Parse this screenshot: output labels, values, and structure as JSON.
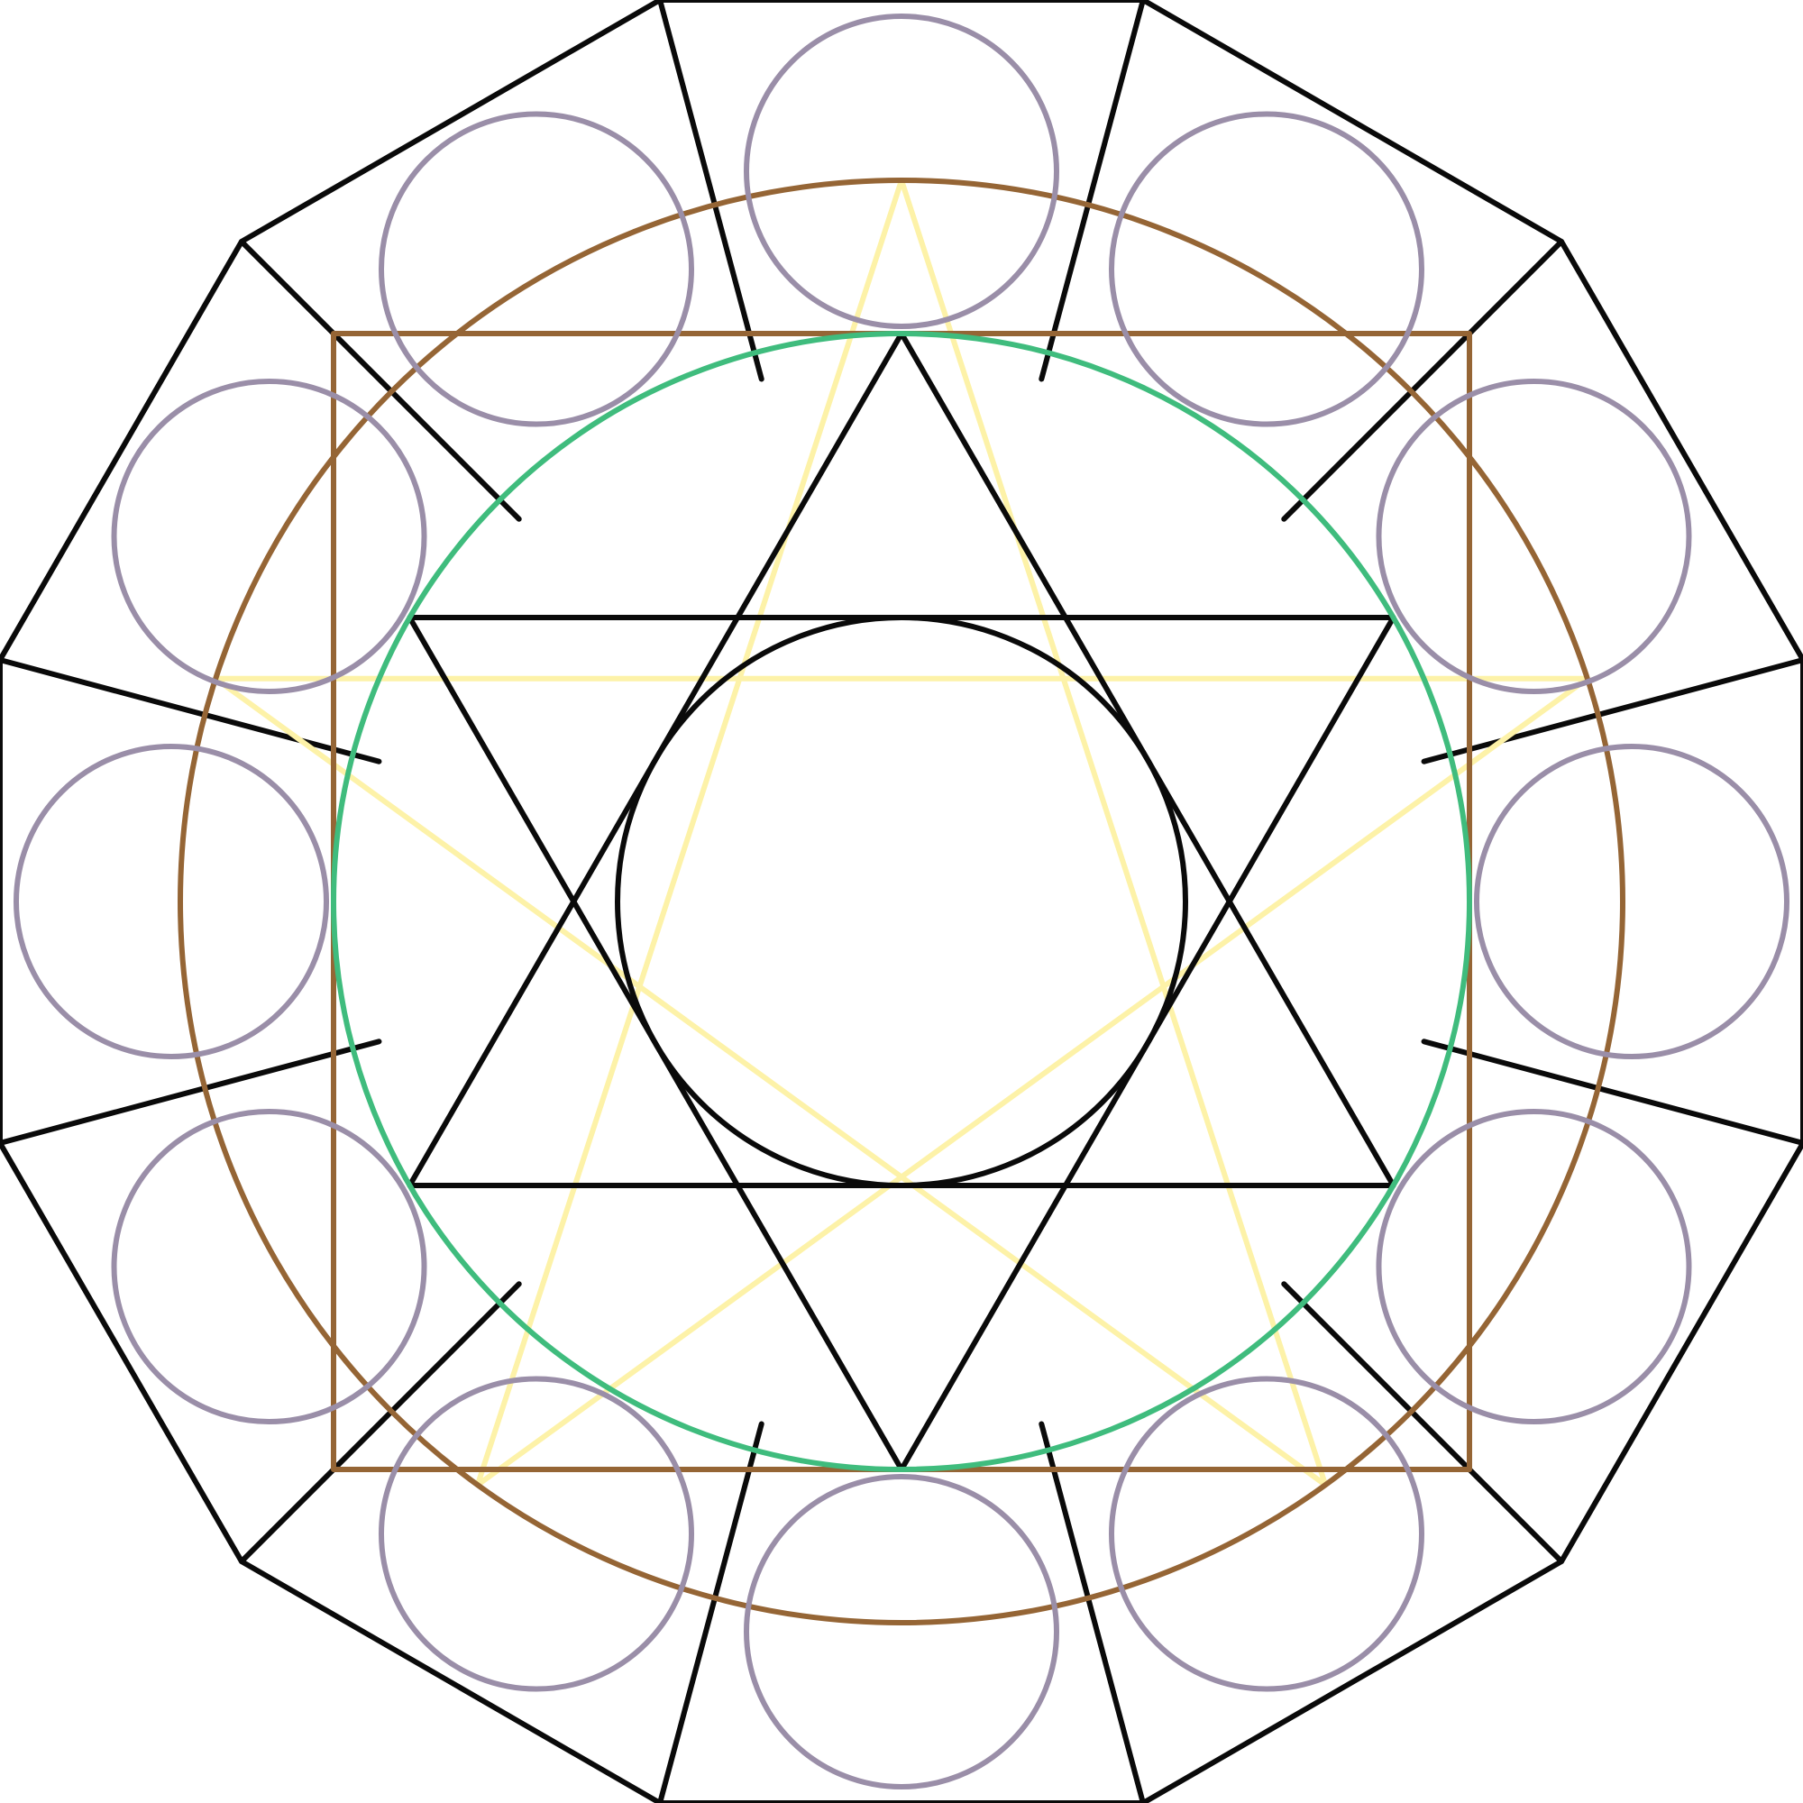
{
  "diagram": {
    "colors": {
      "outline": "#0a0a0a",
      "bronze": "#956535",
      "yellow": "#fdf2a8",
      "green": "#3fbc7d",
      "lavender": "#9a8ea8",
      "background": "#ffffff"
    },
    "elements": [
      "dodecagon-outline",
      "dodecagon-spokes",
      "bronze-square",
      "bronze-circle",
      "yellow-pentagram",
      "green-circle",
      "hexagram",
      "inner-circle",
      "lavender-ring-circles"
    ]
  }
}
